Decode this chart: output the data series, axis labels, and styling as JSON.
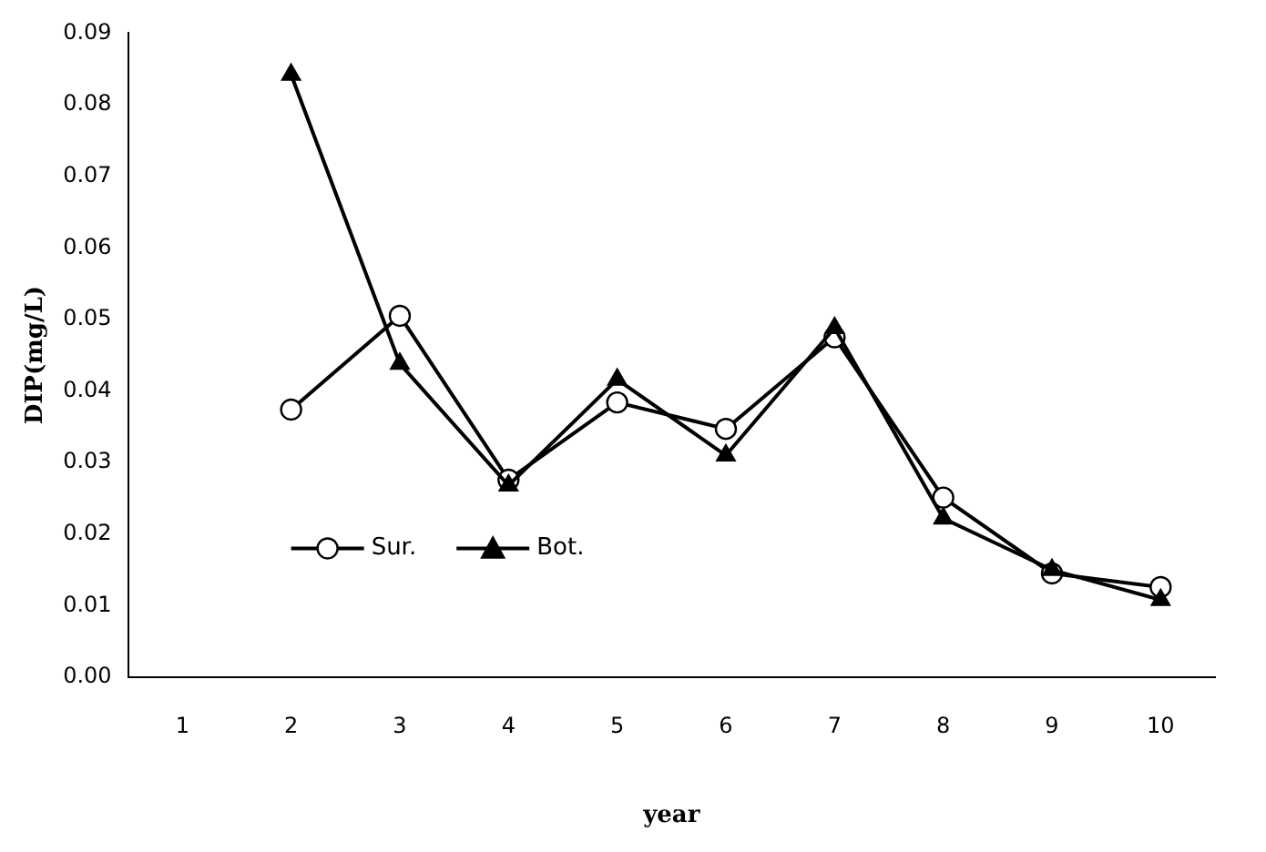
{
  "chart_data": {
    "type": "line",
    "xlabel": "year",
    "ylabel": "DIP(mg/L)",
    "categories": [
      "1",
      "2",
      "3",
      "4",
      "5",
      "6",
      "7",
      "8",
      "9",
      "10"
    ],
    "series": [
      {
        "name": "Sur.",
        "color": "#000000",
        "marker": "circle",
        "values": [
          null,
          0.0374,
          0.0505,
          0.0276,
          0.0384,
          0.0347,
          0.0475,
          0.0251,
          0.0145,
          0.0126
        ]
      },
      {
        "name": "Bot.",
        "color": "#000000",
        "marker": "triangle",
        "values": [
          null,
          0.0842,
          0.0438,
          0.0268,
          0.0416,
          0.031,
          0.0488,
          0.0222,
          0.015,
          0.0108
        ]
      }
    ],
    "ylim": [
      0,
      0.09
    ],
    "yticks": [
      {
        "value": 0,
        "label": "0.00"
      },
      0.01,
      0.02,
      0.03,
      0.04,
      0.05,
      0.06,
      0.07,
      0.08,
      0.09
    ],
    "grid": false,
    "legend": "bottom left",
    "line_style": "solid"
  }
}
